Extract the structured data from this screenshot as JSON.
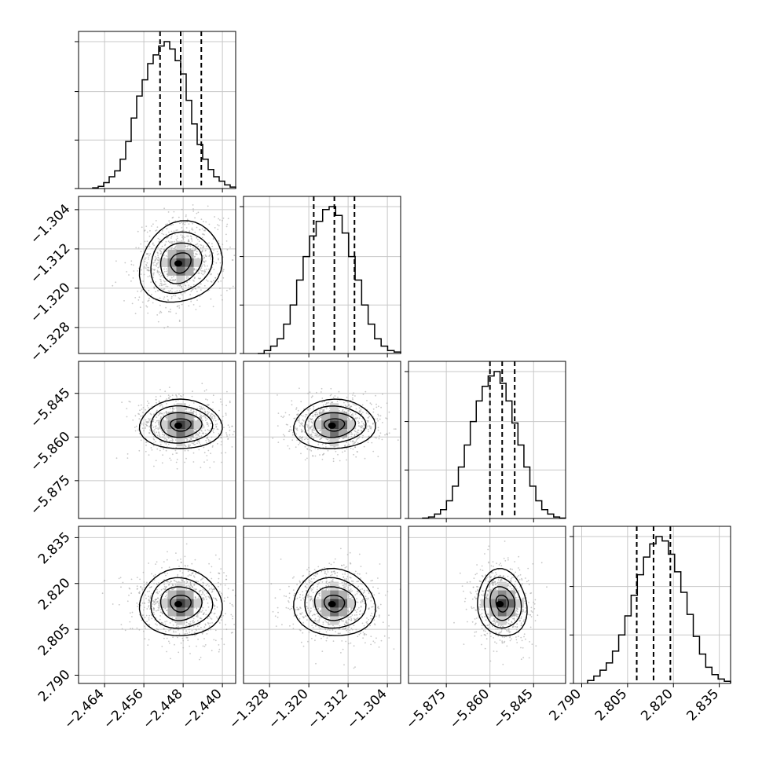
{
  "chart_data": {
    "type": "corner",
    "parameters": [
      {
        "ticks": [
          "−2.464",
          "−2.456",
          "−2.448",
          "−2.440"
        ],
        "tick_values": [
          -2.464,
          -2.456,
          -2.448,
          -2.44
        ],
        "range": [
          -2.4693,
          -2.4373
        ],
        "median": -2.4485,
        "quantiles": [
          -2.4527,
          -2.4443
        ]
      },
      {
        "ticks": [
          "−1.328",
          "−1.320",
          "−1.312",
          "−1.304"
        ],
        "tick_values": [
          -1.328,
          -1.32,
          -1.312,
          -1.304
        ],
        "range": [
          -1.3333,
          -1.3013
        ],
        "median": -1.3148,
        "quantiles": [
          -1.319,
          -1.3107
        ]
      },
      {
        "ticks": [
          "−5.875",
          "−5.860",
          "−5.845"
        ],
        "tick_values": [
          -5.875,
          -5.86,
          -5.845
        ],
        "range": [
          -5.888,
          -5.834
        ],
        "median": -5.8558,
        "quantiles": [
          -5.86,
          -5.8515
        ]
      },
      {
        "ticks": [
          "2.790",
          "2.805",
          "2.820",
          "2.835"
        ],
        "tick_values": [
          2.79,
          2.805,
          2.82,
          2.835
        ],
        "range": [
          2.7873,
          2.8387
        ],
        "median": 2.8135,
        "quantiles": [
          2.808,
          2.819
        ]
      }
    ],
    "diagonal_histograms": [
      [
        0.005,
        0.015,
        0.04,
        0.08,
        0.12,
        0.2,
        0.32,
        0.48,
        0.63,
        0.74,
        0.85,
        0.91,
        0.97,
        1.0,
        0.95,
        0.87,
        0.78,
        0.6,
        0.44,
        0.3,
        0.2,
        0.13,
        0.08,
        0.05,
        0.025,
        0.01
      ],
      [
        0.0,
        0.02,
        0.05,
        0.1,
        0.2,
        0.33,
        0.5,
        0.66,
        0.8,
        0.9,
        0.98,
        1.0,
        0.94,
        0.82,
        0.66,
        0.5,
        0.33,
        0.2,
        0.1,
        0.05,
        0.02,
        0.01
      ],
      [
        0.003,
        0.01,
        0.03,
        0.06,
        0.12,
        0.22,
        0.35,
        0.5,
        0.66,
        0.8,
        0.9,
        0.97,
        1.0,
        0.92,
        0.8,
        0.65,
        0.5,
        0.35,
        0.22,
        0.12,
        0.06,
        0.03,
        0.01,
        0.003
      ],
      [
        0.02,
        0.05,
        0.09,
        0.14,
        0.22,
        0.33,
        0.46,
        0.6,
        0.74,
        0.86,
        0.95,
        1.0,
        0.97,
        0.88,
        0.76,
        0.62,
        0.47,
        0.32,
        0.2,
        0.11,
        0.06,
        0.03,
        0.015
      ]
    ],
    "pair_correlations": [
      [
        null,
        null,
        null,
        null
      ],
      [
        0.15,
        null,
        null,
        null
      ],
      [
        0.0,
        0.05,
        null,
        null
      ],
      [
        0.0,
        -0.05,
        -0.1,
        null
      ]
    ],
    "contour_levels": [
      0.5,
      1.0,
      1.5,
      2.0
    ],
    "grid": true,
    "colors": {
      "points": "#9a9a9a",
      "hist_line": "#000000",
      "grid": "#c8c8c8",
      "quantile_line": "#000000",
      "density_dark": "#000000"
    }
  }
}
